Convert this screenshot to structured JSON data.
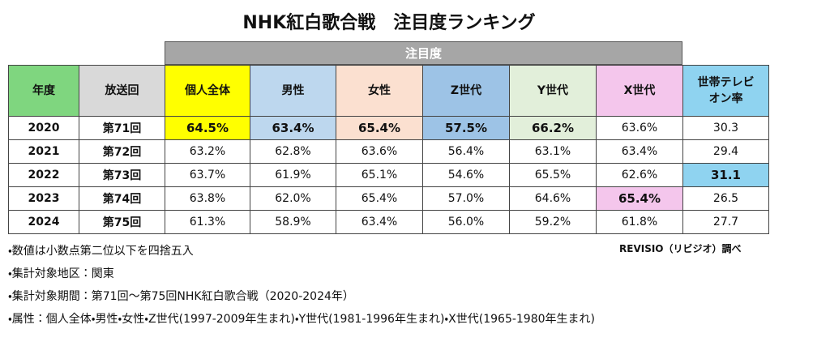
{
  "title": "NHK紅白歌合戦　注目度ランキング",
  "table": {
    "group_header": "注目度",
    "headers": [
      "年度",
      "放送回",
      "個人全体",
      "男性",
      "女性",
      "Z世代",
      "Y世代",
      "X世代",
      "世帯テレビオン率"
    ],
    "rows": [
      [
        "2020",
        "第71回",
        "64.5%",
        "63.4%",
        "65.4%",
        "57.5%",
        "66.2%",
        "63.6%",
        "30.3"
      ],
      [
        "2021",
        "第72回",
        "63.2%",
        "62.8%",
        "63.6%",
        "56.4%",
        "63.1%",
        "63.4%",
        "29.4"
      ],
      [
        "2022",
        "第73回",
        "63.7%",
        "61.9%",
        "65.1%",
        "54.6%",
        "65.5%",
        "62.6%",
        "31.1"
      ],
      [
        "2023",
        "第74回",
        "63.8%",
        "62.0%",
        "65.4%",
        "57.0%",
        "64.6%",
        "65.4%",
        "26.5"
      ],
      [
        "2024",
        "第75回",
        "61.3%",
        "58.9%",
        "63.4%",
        "56.0%",
        "59.2%",
        "61.8%",
        "27.7"
      ]
    ]
  },
  "source": "REVISIO（リビジオ）調べ",
  "notes": [
    "・数値は小数点第二位以下を四捨五入",
    "・集計対象地区：関東",
    "・集計対象期間：第71回～第75回NHK紅白歌合戦（2020-2024年）",
    "・属性：個人全体・男性・女性・Z世代(1997-2009年生まれ)・Y世代(1981-1996年生まれ)・X世代(1965-1980年生まれ)"
  ]
}
